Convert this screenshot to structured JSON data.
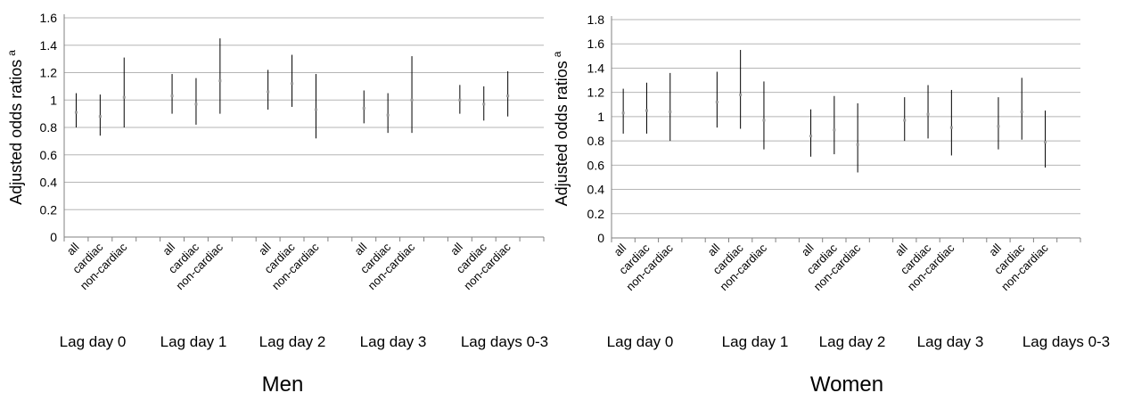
{
  "chart_data": [
    {
      "type": "errorbar",
      "title": "Men",
      "ylabel": "Adjusted odds ratios",
      "ylabel_superscript": "a",
      "ylim": [
        0,
        1.6
      ],
      "yticks": [
        "0",
        "0.2",
        "0.4",
        "0.6",
        "0.8",
        "1",
        "1.2",
        "1.4",
        "1.6"
      ],
      "grid": true,
      "groups": [
        "Lag day 0",
        "Lag day 1",
        "Lag day 2",
        "Lag day 3",
        "Lag days 0-3"
      ],
      "subcategories": [
        "all",
        "cardiac",
        "non-cardiac"
      ],
      "points": [
        {
          "group": 0,
          "sub": 0,
          "low": 0.8,
          "est": 0.91,
          "high": 1.05
        },
        {
          "group": 0,
          "sub": 1,
          "low": 0.74,
          "est": 0.88,
          "high": 1.04
        },
        {
          "group": 0,
          "sub": 2,
          "low": 0.8,
          "est": 1.02,
          "high": 1.31
        },
        {
          "group": 1,
          "sub": 0,
          "low": 0.9,
          "est": 1.03,
          "high": 1.19
        },
        {
          "group": 1,
          "sub": 1,
          "low": 0.82,
          "est": 0.97,
          "high": 1.16
        },
        {
          "group": 1,
          "sub": 2,
          "low": 0.9,
          "est": 1.14,
          "high": 1.45
        },
        {
          "group": 2,
          "sub": 0,
          "low": 0.93,
          "est": 1.06,
          "high": 1.22
        },
        {
          "group": 2,
          "sub": 1,
          "low": 0.95,
          "est": 1.12,
          "high": 1.33
        },
        {
          "group": 2,
          "sub": 2,
          "low": 0.72,
          "est": 0.93,
          "high": 1.19
        },
        {
          "group": 3,
          "sub": 0,
          "low": 0.83,
          "est": 0.94,
          "high": 1.07
        },
        {
          "group": 3,
          "sub": 1,
          "low": 0.76,
          "est": 0.89,
          "high": 1.05
        },
        {
          "group": 3,
          "sub": 2,
          "low": 0.76,
          "est": 1.0,
          "high": 1.32
        },
        {
          "group": 4,
          "sub": 0,
          "low": 0.9,
          "est": 1.0,
          "high": 1.11
        },
        {
          "group": 4,
          "sub": 1,
          "low": 0.85,
          "est": 0.97,
          "high": 1.1
        },
        {
          "group": 4,
          "sub": 2,
          "low": 0.88,
          "est": 1.03,
          "high": 1.21
        }
      ]
    },
    {
      "type": "errorbar",
      "title": "Women",
      "ylabel": "Adjusted odds ratios",
      "ylabel_superscript": "a",
      "ylim": [
        0,
        1.8
      ],
      "yticks": [
        "0",
        "0.2",
        "0.4",
        "0.6",
        "0.8",
        "1",
        "1.2",
        "1.4",
        "1.6",
        "1.8"
      ],
      "grid": true,
      "groups": [
        "Lag day 0",
        "Lag day 1",
        "Lag day 2",
        "Lag day 3",
        "Lag days 0-3"
      ],
      "subcategories": [
        "all",
        "cardiac",
        "non-cardiac"
      ],
      "points": [
        {
          "group": 0,
          "sub": 0,
          "low": 0.86,
          "est": 1.03,
          "high": 1.23
        },
        {
          "group": 0,
          "sub": 1,
          "low": 0.86,
          "est": 1.05,
          "high": 1.28
        },
        {
          "group": 0,
          "sub": 2,
          "low": 0.8,
          "est": 1.04,
          "high": 1.36
        },
        {
          "group": 1,
          "sub": 0,
          "low": 0.91,
          "est": 1.12,
          "high": 1.37
        },
        {
          "group": 1,
          "sub": 1,
          "low": 0.9,
          "est": 1.18,
          "high": 1.55
        },
        {
          "group": 1,
          "sub": 2,
          "low": 0.73,
          "est": 0.97,
          "high": 1.29
        },
        {
          "group": 2,
          "sub": 0,
          "low": 0.67,
          "est": 0.84,
          "high": 1.06
        },
        {
          "group": 2,
          "sub": 1,
          "low": 0.69,
          "est": 0.89,
          "high": 1.17
        },
        {
          "group": 2,
          "sub": 2,
          "low": 0.54,
          "est": 0.77,
          "high": 1.11
        },
        {
          "group": 3,
          "sub": 0,
          "low": 0.8,
          "est": 0.97,
          "high": 1.16
        },
        {
          "group": 3,
          "sub": 1,
          "low": 0.82,
          "est": 1.02,
          "high": 1.26
        },
        {
          "group": 3,
          "sub": 2,
          "low": 0.68,
          "est": 0.91,
          "high": 1.22
        },
        {
          "group": 4,
          "sub": 0,
          "low": 0.73,
          "est": 0.92,
          "high": 1.16
        },
        {
          "group": 4,
          "sub": 1,
          "low": 0.81,
          "est": 1.04,
          "high": 1.32
        },
        {
          "group": 4,
          "sub": 2,
          "low": 0.58,
          "est": 0.79,
          "high": 1.05
        }
      ]
    }
  ]
}
